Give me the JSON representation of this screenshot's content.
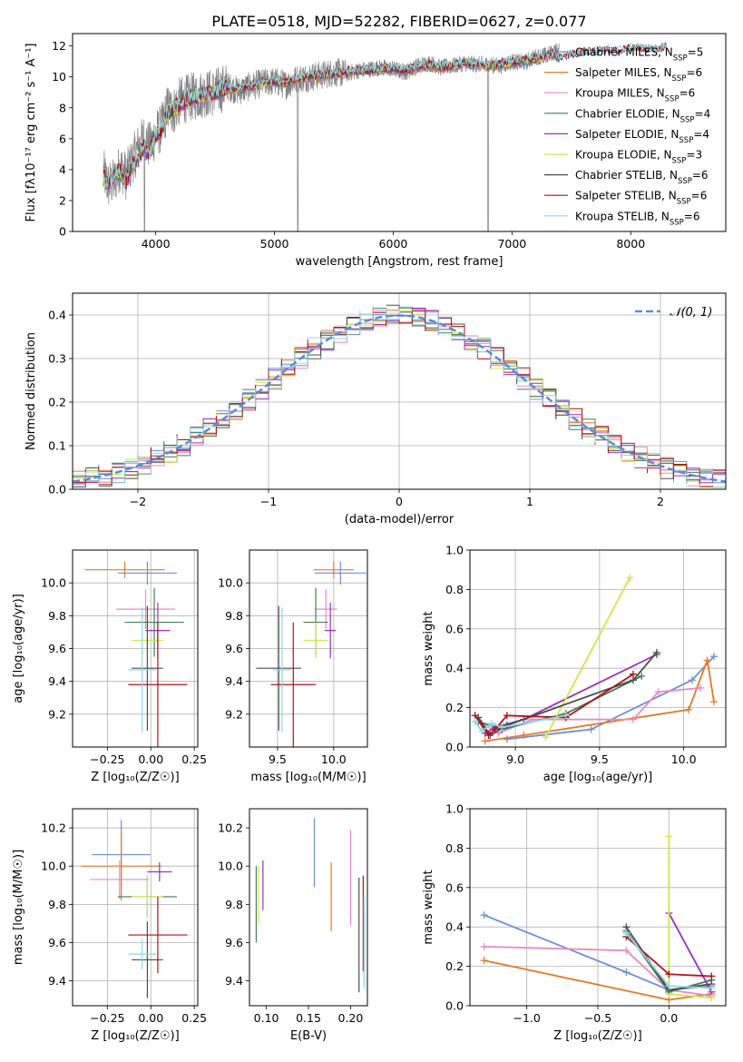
{
  "figure": {
    "title": "PLATE=0518, MJD=52282, FIBERID=0627, z=0.077"
  },
  "models": [
    {
      "name": "Chabrier MILES",
      "nssp": "5",
      "color": "#6c8fd6"
    },
    {
      "name": "Salpeter MILES",
      "nssp": "6",
      "color": "#e07b2a"
    },
    {
      "name": "Kroupa MILES",
      "nssp": "6",
      "color": "#e78ac3"
    },
    {
      "name": "Chabrier ELODIE",
      "nssp": "4",
      "color": "#4a7a5c"
    },
    {
      "name": "Salpeter ELODIE",
      "nssp": "4",
      "color": "#9b30b8"
    },
    {
      "name": "Kroupa ELODIE",
      "nssp": "3",
      "color": "#cbe84a"
    },
    {
      "name": "Chabrier STELIB",
      "nssp": "6",
      "color": "#4d4d4d"
    },
    {
      "name": "Salpeter STELIB",
      "nssp": "6",
      "color": "#b0101a"
    },
    {
      "name": "Kroupa STELIB",
      "nssp": "6",
      "color": "#8fd8e0"
    }
  ],
  "chart_data": [
    {
      "id": "spectrum",
      "type": "line",
      "xlabel": "wavelength [Angstrom, rest frame]",
      "ylabel": "Flux [fλ10⁻¹⁷ erg cm⁻² s⁻¹ A⁻¹]",
      "xlim": [
        3300,
        8800
      ],
      "ylim": [
        0,
        12.8
      ],
      "xticks": [
        4000,
        5000,
        6000,
        7000,
        8000
      ],
      "yticks": [
        0,
        2,
        4,
        6,
        8,
        10,
        12
      ],
      "data_color": "#808080",
      "series": [
        {
          "kind": "data",
          "x": [
            3560,
            3600,
            3650,
            3700,
            3750,
            3800,
            3850,
            3900,
            3950,
            4000,
            4050,
            4100,
            4150,
            4200,
            4300,
            4400,
            4500,
            4600,
            4700,
            4800,
            4900,
            5000,
            5100,
            5200,
            5300,
            5400,
            5500,
            5600,
            5700,
            5800,
            5900,
            6000,
            6100,
            6200,
            6300,
            6400,
            6500,
            6600,
            6700,
            6800,
            6900,
            7000,
            7100,
            7200,
            7300,
            7350,
            7400
          ],
          "y": [
            3.8,
            3.0,
            3.2,
            4.2,
            3.6,
            4.5,
            5.4,
            6.0,
            5.5,
            6.3,
            6.7,
            8.0,
            7.8,
            8.4,
            8.7,
            8.9,
            9.0,
            9.4,
            9.1,
            9.4,
            9.6,
            9.7,
            9.5,
            9.9,
            10.0,
            10.1,
            10.3,
            10.2,
            10.4,
            10.5,
            10.6,
            10.5,
            10.3,
            10.7,
            10.9,
            10.6,
            10.7,
            10.9,
            10.8,
            10.8,
            10.7,
            11.0,
            10.9,
            11.3,
            11.4,
            11.6,
            11.7
          ],
          "noise": 3.2
        },
        {
          "kind": "model",
          "x": [
            3560,
            3600,
            3650,
            3700,
            3750,
            3800,
            3850,
            3900,
            3950,
            4000,
            4050,
            4100,
            4150,
            4200,
            4300,
            4400,
            4500,
            4600,
            4700,
            4800,
            4900,
            5000,
            5100,
            5200,
            5300,
            5400,
            5500,
            5600,
            5700,
            5800,
            5900,
            6000,
            6100,
            6200,
            6300,
            6400,
            6500,
            6600,
            6700,
            6800,
            6900,
            7000,
            7100,
            7200,
            7300,
            7350,
            7400,
            7500,
            7600,
            7700,
            7800,
            7900,
            8000,
            8100,
            8200,
            8300
          ],
          "y": [
            3.5,
            3.1,
            3.6,
            3.9,
            3.2,
            4.3,
            4.6,
            5.5,
            5.0,
            6.2,
            6.6,
            7.6,
            7.9,
            8.2,
            8.6,
            8.8,
            9.0,
            9.3,
            9.2,
            9.4,
            9.6,
            9.7,
            9.6,
            9.9,
            10.0,
            10.1,
            10.2,
            10.3,
            10.4,
            10.4,
            10.5,
            10.5,
            10.4,
            10.6,
            10.8,
            10.6,
            10.7,
            10.9,
            10.8,
            10.7,
            10.8,
            10.9,
            11.0,
            11.2,
            11.3,
            11.5,
            11.2,
            11.4,
            11.5,
            11.6,
            11.7,
            11.6,
            11.8,
            11.8,
            11.7,
            11.9
          ]
        }
      ],
      "legend": "right"
    },
    {
      "id": "residuals",
      "type": "line",
      "xlabel": "(data-model)/error",
      "ylabel": "Normed distribution",
      "xlim": [
        -2.5,
        2.5
      ],
      "ylim": [
        0,
        0.45
      ],
      "xticks": [
        -2,
        -1,
        0,
        1,
        2
      ],
      "yticks": [
        0.0,
        0.1,
        0.2,
        0.3,
        0.4
      ],
      "grid": true,
      "legend_label": "𝒩(0, 1)",
      "legend": "top-right",
      "normal_color": "#5b8bd8"
    },
    {
      "id": "age_vs_z",
      "type": "scatter",
      "xlabel": "Z [log₁₀(Z/Z☉)]",
      "ylabel": "age  [log₁₀(age/yr)]",
      "xlim": [
        -0.45,
        0.27
      ],
      "ylim": [
        9.0,
        10.2
      ],
      "xticks": [
        -0.25,
        0.0,
        0.25
      ],
      "yticks": [
        9.2,
        9.4,
        9.6,
        9.8,
        10.0
      ],
      "grid": true,
      "points": [
        {
          "x": -0.02,
          "y": 10.06,
          "xerr": 0.17,
          "yerr": 0.07
        },
        {
          "x": -0.15,
          "y": 10.08,
          "xerr": 0.23,
          "yerr": 0.05
        },
        {
          "x": -0.03,
          "y": 9.84,
          "xerr": 0.17,
          "yerr": 0.12
        },
        {
          "x": 0.02,
          "y": 9.76,
          "xerr": 0.17,
          "yerr": 0.21
        },
        {
          "x": 0.04,
          "y": 9.71,
          "xerr": 0.07,
          "yerr": 0.17
        },
        {
          "x": -0.02,
          "y": 9.65,
          "xerr": 0.09,
          "yerr": 0.11
        },
        {
          "x": -0.02,
          "y": 9.48,
          "xerr": 0.09,
          "yerr": 0.38
        },
        {
          "x": 0.04,
          "y": 9.38,
          "xerr": 0.17,
          "yerr": 0.38
        },
        {
          "x": -0.05,
          "y": 9.47,
          "xerr": 0.08,
          "yerr": 0.38
        }
      ]
    },
    {
      "id": "age_vs_mass",
      "type": "scatter",
      "xlabel": "mass [log₁₀(M/M☉)]",
      "ylabel": "",
      "xlim": [
        9.25,
        10.3
      ],
      "ylim": [
        9.0,
        10.2
      ],
      "xticks": [
        9.5,
        10.0
      ],
      "yticks": [
        9.2,
        9.4,
        9.6,
        9.8,
        10.0
      ],
      "grid": true,
      "points": [
        {
          "x": 10.06,
          "y": 10.06,
          "xerr": 0.23,
          "yerr": 0.07
        },
        {
          "x": 10.0,
          "y": 10.08,
          "xerr": 0.18,
          "yerr": 0.05
        },
        {
          "x": 9.93,
          "y": 9.84,
          "xerr": 0.1,
          "yerr": 0.12
        },
        {
          "x": 9.84,
          "y": 9.76,
          "xerr": 0.11,
          "yerr": 0.21
        },
        {
          "x": 9.97,
          "y": 9.71,
          "xerr": 0.05,
          "yerr": 0.17
        },
        {
          "x": 9.84,
          "y": 9.65,
          "xerr": 0.11,
          "yerr": 0.11
        },
        {
          "x": 9.51,
          "y": 9.48,
          "xerr": 0.2,
          "yerr": 0.38
        },
        {
          "x": 9.64,
          "y": 9.38,
          "xerr": 0.2,
          "yerr": 0.38
        },
        {
          "x": 9.54,
          "y": 9.47,
          "xerr": 0.08,
          "yerr": 0.38
        }
      ]
    },
    {
      "id": "massweight_vs_age",
      "type": "line",
      "xlabel": "age  [log₁₀(age/yr)]",
      "ylabel": "mass weight",
      "xlim": [
        8.73,
        10.25
      ],
      "ylim": [
        0,
        1.0
      ],
      "xticks": [
        9.0,
        9.5,
        10.0
      ],
      "yticks": [
        0.0,
        0.2,
        0.4,
        0.6,
        0.8,
        1.0
      ],
      "grid": true,
      "series": [
        {
          "x": [
            8.95,
            9.45,
            10.05,
            10.18
          ],
          "y": [
            0.04,
            0.09,
            0.34,
            0.46
          ]
        },
        {
          "x": [
            8.82,
            9.05,
            10.03,
            10.14,
            10.18
          ],
          "y": [
            0.03,
            0.06,
            0.19,
            0.44,
            0.23
          ]
        },
        {
          "x": [
            8.8,
            8.9,
            9.1,
            9.7,
            9.85,
            10.1
          ],
          "y": [
            0.12,
            0.07,
            0.14,
            0.14,
            0.28,
            0.3
          ]
        },
        {
          "x": [
            8.78,
            8.92,
            9.3,
            9.75
          ],
          "y": [
            0.13,
            0.09,
            0.17,
            0.36
          ]
        },
        {
          "x": [
            8.82,
            8.88,
            9.05,
            9.84
          ],
          "y": [
            0.07,
            0.1,
            0.14,
            0.47
          ]
        },
        {
          "x": [
            9.18,
            9.68
          ],
          "y": [
            0.05,
            0.86
          ]
        },
        {
          "x": [
            8.78,
            8.85,
            8.95,
            9.7,
            9.84
          ],
          "y": [
            0.15,
            0.06,
            0.11,
            0.34,
            0.48
          ]
        },
        {
          "x": [
            8.76,
            8.84,
            8.88,
            8.95,
            9.3,
            9.7
          ],
          "y": [
            0.16,
            0.06,
            0.09,
            0.16,
            0.15,
            0.37
          ]
        },
        {
          "x": [
            8.76,
            8.8,
            8.86,
            8.92,
            9.3
          ],
          "y": [
            0.13,
            0.08,
            0.12,
            0.1,
            0.16
          ]
        }
      ]
    },
    {
      "id": "mass_vs_z",
      "type": "scatter",
      "xlabel": "Z [log₁₀(Z/Z☉)]",
      "ylabel": "mass [log₁₀(M/M☉)]",
      "xlim": [
        -0.45,
        0.27
      ],
      "ylim": [
        9.27,
        10.3
      ],
      "xticks": [
        -0.25,
        0.0,
        0.25
      ],
      "yticks": [
        9.4,
        9.6,
        9.8,
        10.0,
        10.2
      ],
      "grid": true,
      "points": [
        {
          "x": -0.17,
          "y": 10.06,
          "xerr": 0.17,
          "yerr": 0.18
        },
        {
          "x": -0.17,
          "y": 10.0,
          "xerr": 0.23,
          "yerr": 0.18
        },
        {
          "x": -0.18,
          "y": 9.93,
          "xerr": 0.17,
          "yerr": 0.1
        },
        {
          "x": -0.02,
          "y": 9.84,
          "xerr": 0.17,
          "yerr": 0.11
        },
        {
          "x": 0.05,
          "y": 9.97,
          "xerr": 0.07,
          "yerr": 0.05
        },
        {
          "x": -0.02,
          "y": 9.84,
          "xerr": 0.09,
          "yerr": 0.11
        },
        {
          "x": -0.02,
          "y": 9.51,
          "xerr": 0.09,
          "yerr": 0.2
        },
        {
          "x": 0.04,
          "y": 9.64,
          "xerr": 0.17,
          "yerr": 0.2
        },
        {
          "x": -0.05,
          "y": 9.54,
          "xerr": 0.08,
          "yerr": 0.08
        }
      ]
    },
    {
      "id": "mass_vs_ebv",
      "type": "scatter",
      "xlabel": "E(B-V)",
      "ylabel": "",
      "xlim": [
        0.08,
        0.22
      ],
      "ylim": [
        9.27,
        10.3
      ],
      "xticks": [
        0.1,
        0.15,
        0.2
      ],
      "yticks": [
        9.4,
        9.6,
        9.8,
        10.0,
        10.2
      ],
      "grid": false,
      "points": [
        {
          "x": 0.157,
          "y": 10.07,
          "yerr": 0.18
        },
        {
          "x": 0.177,
          "y": 9.84,
          "yerr": 0.18
        },
        {
          "x": 0.2,
          "y": 9.94,
          "yerr": 0.25
        },
        {
          "x": 0.088,
          "y": 9.8,
          "yerr": 0.2
        },
        {
          "x": 0.096,
          "y": 9.9,
          "yerr": 0.13
        },
        {
          "x": 0.091,
          "y": 9.85,
          "yerr": 0.15
        },
        {
          "x": 0.21,
          "y": 9.64,
          "yerr": 0.3
        },
        {
          "x": 0.215,
          "y": 9.7,
          "yerr": 0.25
        },
        {
          "x": 0.216,
          "y": 9.6,
          "yerr": 0.24
        }
      ]
    },
    {
      "id": "massweight_vs_z",
      "type": "line",
      "xlabel": "Z [log₁₀(Z/Z☉)]",
      "ylabel": "mass weight",
      "xlim": [
        -1.4,
        0.4
      ],
      "ylim": [
        0,
        1.0
      ],
      "xticks": [
        -1.0,
        -0.5,
        0.0
      ],
      "yticks": [
        0.0,
        0.2,
        0.4,
        0.6,
        0.8,
        1.0
      ],
      "grid": true,
      "series": [
        {
          "x": [
            -1.3,
            -0.3,
            0.0,
            0.3
          ],
          "y": [
            0.46,
            0.17,
            0.08,
            0.1
          ]
        },
        {
          "x": [
            -1.3,
            0.0,
            0.3
          ],
          "y": [
            0.23,
            0.03,
            0.06
          ]
        },
        {
          "x": [
            -1.3,
            -0.3,
            0.0,
            0.3
          ],
          "y": [
            0.3,
            0.28,
            0.08,
            0.05
          ]
        },
        {
          "x": [
            -0.3,
            0.0,
            0.3
          ],
          "y": [
            0.38,
            0.07,
            0.13
          ]
        },
        {
          "x": [
            0.0,
            0.3
          ],
          "y": [
            0.47,
            0.07
          ]
        },
        {
          "x": [
            0.0,
            0.0,
            0.3
          ],
          "y": [
            0.86,
            0.06,
            0.04
          ]
        },
        {
          "x": [
            -0.3,
            0.0,
            0.3
          ],
          "y": [
            0.4,
            0.08,
            0.11
          ]
        },
        {
          "x": [
            -0.3,
            0.0,
            0.3
          ],
          "y": [
            0.35,
            0.16,
            0.15
          ]
        },
        {
          "x": [
            -0.3,
            0.0,
            0.3
          ],
          "y": [
            0.37,
            0.1,
            0.09
          ]
        }
      ]
    }
  ]
}
